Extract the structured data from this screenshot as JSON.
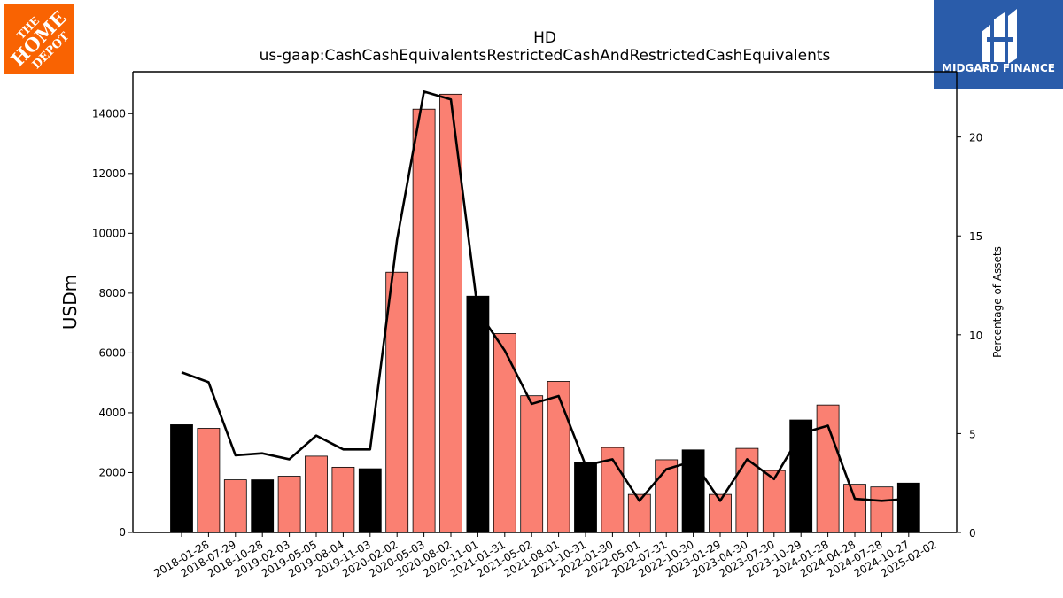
{
  "logos": {
    "left": {
      "text_lines": [
        "THE",
        "HOME",
        "DEPOT"
      ],
      "color": "#F96302"
    },
    "right": {
      "name": "MIDGARD FINANCE",
      "color": "#2A5CAA"
    }
  },
  "chart_data": {
    "type": "bar",
    "title": "HD",
    "subtitle": "us-gaap:CashCashEquivalentsRestrictedCashAndRestrictedCashEquivalents",
    "ylabel": "USDm",
    "y2label": "Percentage of Assets",
    "ylim": [
      0,
      15400
    ],
    "y2lim": [
      0,
      23.3
    ],
    "yticks": [
      0,
      2000,
      4000,
      6000,
      8000,
      10000,
      12000,
      14000
    ],
    "y2ticks": [
      0,
      5,
      10,
      15,
      20
    ],
    "grid": false,
    "colors": {
      "annual": "#000000",
      "quarterly": "#FA8072",
      "line": "#000000"
    },
    "categories": [
      "2018-01-28",
      "2018-07-29",
      "2018-10-28",
      "2019-02-03",
      "2019-05-05",
      "2019-08-04",
      "2019-11-03",
      "2020-02-02",
      "2020-05-03",
      "2020-08-02",
      "2020-11-01",
      "2021-01-31",
      "2021-05-02",
      "2021-08-01",
      "2021-10-31",
      "2022-01-30",
      "2022-05-01",
      "2022-07-31",
      "2022-10-30",
      "2023-01-29",
      "2023-04-30",
      "2023-07-30",
      "2023-10-29",
      "2024-01-28",
      "2024-04-28",
      "2024-07-28",
      "2024-10-27",
      "2025-02-02"
    ],
    "series": [
      {
        "type": "bar",
        "values": [
          3600,
          3480,
          1760,
          1760,
          1880,
          2550,
          2180,
          2130,
          8700,
          14150,
          14650,
          7900,
          6650,
          4570,
          5050,
          2340,
          2840,
          1270,
          2430,
          2760,
          1270,
          2810,
          2070,
          3760,
          4260,
          1610,
          1520,
          1650
        ],
        "is_fiscal_year_end": [
          true,
          false,
          false,
          true,
          false,
          false,
          false,
          true,
          false,
          false,
          false,
          true,
          false,
          false,
          false,
          true,
          false,
          false,
          false,
          true,
          false,
          false,
          false,
          true,
          false,
          false,
          false,
          true
        ]
      },
      {
        "type": "line",
        "values": [
          8.1,
          7.6,
          3.9,
          4.0,
          3.7,
          4.9,
          4.2,
          4.2,
          14.8,
          22.3,
          21.9,
          11.2,
          9.2,
          6.5,
          6.9,
          3.4,
          3.7,
          1.6,
          3.2,
          3.6,
          1.6,
          3.7,
          2.7,
          5.0,
          5.4,
          1.7,
          1.6,
          1.7
        ],
        "axis": "right"
      }
    ]
  }
}
